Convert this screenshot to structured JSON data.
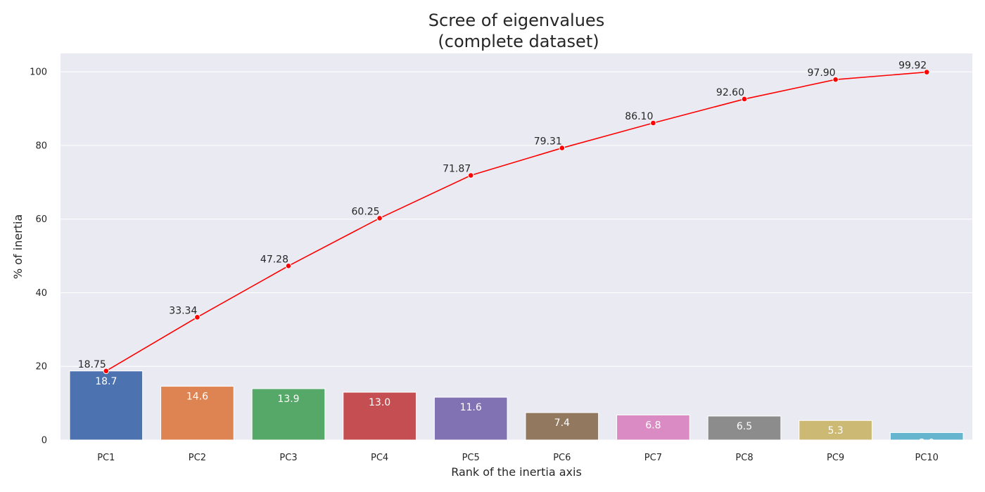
{
  "chart_data": {
    "type": "bar",
    "title": [
      "Scree of eigenvalues",
      "(complete dataset)"
    ],
    "xlabel": "Rank of the inertia axis",
    "ylabel": "% of inertia",
    "ylim": [
      0,
      105
    ],
    "yticks": [
      0,
      20,
      40,
      60,
      80,
      100
    ],
    "grid": true,
    "categories": [
      "PC1",
      "PC2",
      "PC3",
      "PC4",
      "PC5",
      "PC6",
      "PC7",
      "PC8",
      "PC9",
      "PC10"
    ],
    "series": [
      {
        "type": "bar",
        "values": [
          18.75,
          14.59,
          13.94,
          12.97,
          11.62,
          7.44,
          6.79,
          6.5,
          5.3,
          2.02
        ],
        "labels": [
          "18.7",
          "14.6",
          "13.9",
          "13.0",
          "11.6",
          "7.4",
          "6.8",
          "6.5",
          "5.3",
          "2.0"
        ],
        "colors": [
          "#4c72b0",
          "#dd8452",
          "#55a868",
          "#c44e52",
          "#8172b3",
          "#937860",
          "#da8bc3",
          "#8c8c8c",
          "#ccb974",
          "#64b5cd"
        ]
      },
      {
        "type": "line",
        "color": "#ff0000",
        "values": [
          18.75,
          33.34,
          47.28,
          60.25,
          71.87,
          79.31,
          86.1,
          92.6,
          97.9,
          99.92
        ],
        "labels": [
          "18.75",
          "33.34",
          "47.28",
          "60.25",
          "71.87",
          "79.31",
          "86.10",
          "92.60",
          "97.90",
          "99.92"
        ]
      }
    ]
  }
}
